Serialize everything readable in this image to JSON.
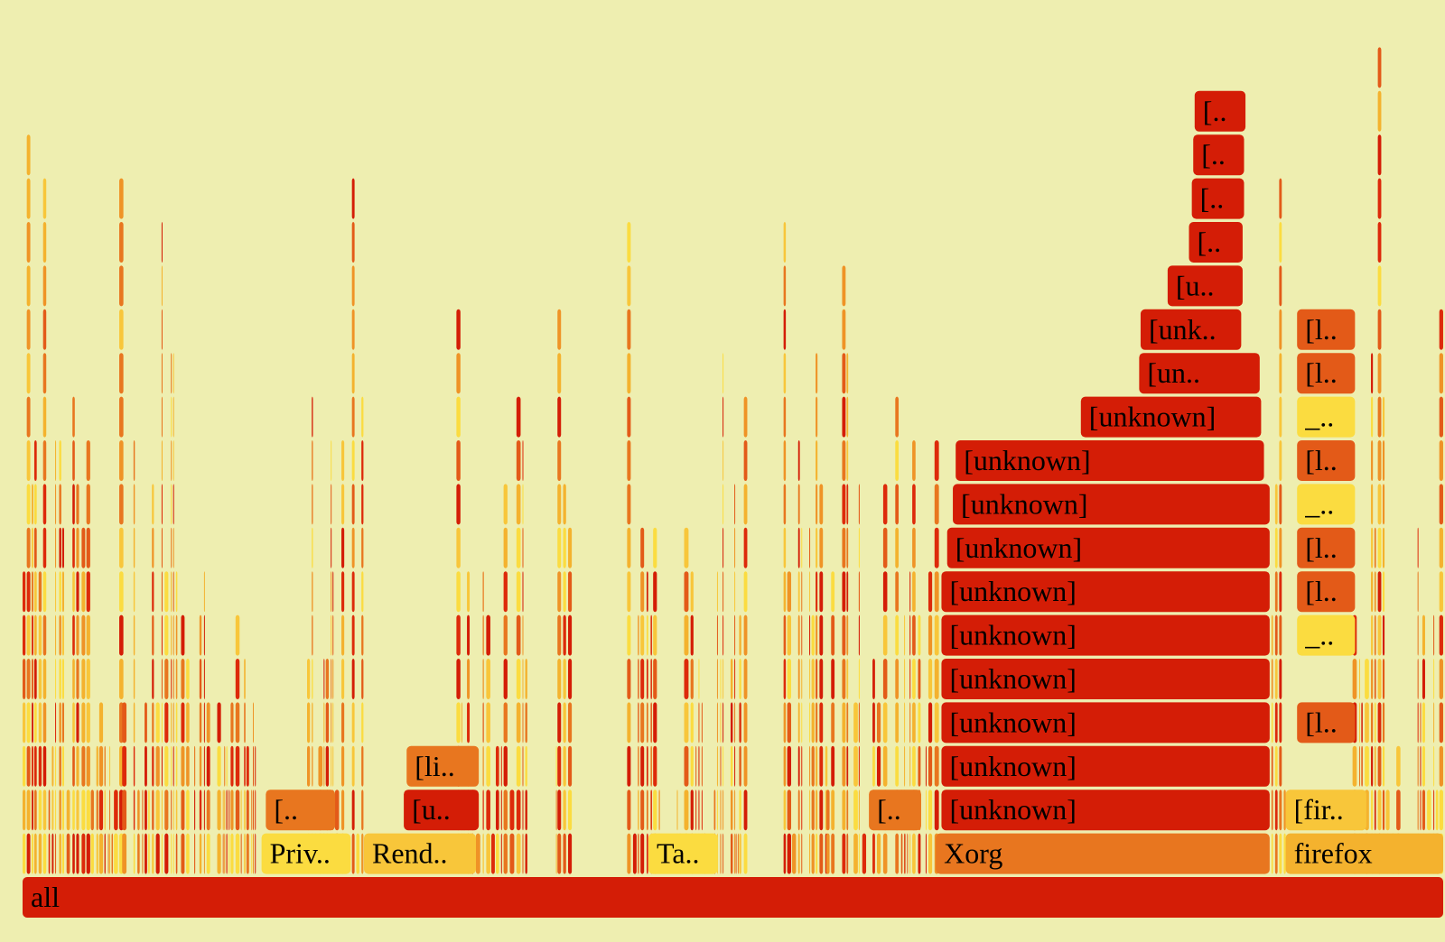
{
  "chart_data": {
    "type": "flamegraph",
    "title": "",
    "total_samples": 1000,
    "palette": [
      "#D41D06",
      "#DD2A0A",
      "#E35A18",
      "#E8761F",
      "#EF9326",
      "#F4B22E",
      "#F8C63A",
      "#FBDC40"
    ],
    "background": "#EEEEB0",
    "frames": [
      {
        "label": "all",
        "start": 0,
        "width": 1000,
        "depth": 0,
        "color": "#D41D06"
      },
      {
        "label": "Priv..",
        "start": 168,
        "width": 64,
        "depth": 1,
        "color": "#FBDC40"
      },
      {
        "label": "Rend..",
        "start": 240,
        "width": 80,
        "depth": 1,
        "color": "#F8C63A"
      },
      {
        "label": "Ta..",
        "start": 440,
        "width": 50,
        "depth": 1,
        "color": "#FBDC40"
      },
      {
        "label": "Xorg",
        "start": 642,
        "width": 236,
        "depth": 1,
        "color": "#E8761F"
      },
      {
        "label": "firefox",
        "start": 888,
        "width": 112,
        "depth": 1,
        "color": "#F4B22E"
      },
      {
        "label": "[..",
        "start": 171,
        "width": 50,
        "depth": 2,
        "color": "#E8761F"
      },
      {
        "label": "[u..",
        "start": 268,
        "width": 54,
        "depth": 2,
        "color": "#D41D06"
      },
      {
        "label": "[..",
        "start": 595,
        "width": 38,
        "depth": 2,
        "color": "#E8761F"
      },
      {
        "label": "[unknown]",
        "start": 646,
        "width": 232,
        "depth": 2,
        "color": "#D41D06"
      },
      {
        "label": "[fir..",
        "start": 888,
        "width": 58,
        "depth": 2,
        "color": "#F8C63A"
      },
      {
        "label": "[li..",
        "start": 270,
        "width": 52,
        "depth": 3,
        "color": "#E8761F"
      },
      {
        "label": "[unknown]",
        "start": 646,
        "width": 232,
        "depth": 3,
        "color": "#D41D06"
      },
      {
        "label": "[unknown]",
        "start": 646,
        "width": 232,
        "depth": 4,
        "color": "#D41D06"
      },
      {
        "label": "[l..",
        "start": 896,
        "width": 42,
        "depth": 4,
        "color": "#E35A18"
      },
      {
        "label": "[unknown]",
        "start": 646,
        "width": 232,
        "depth": 5,
        "color": "#D41D06"
      },
      {
        "label": "[unknown]",
        "start": 646,
        "width": 232,
        "depth": 6,
        "color": "#D41D06"
      },
      {
        "label": "_..",
        "start": 896,
        "width": 42,
        "depth": 6,
        "color": "#FBDC40"
      },
      {
        "label": "[unknown]",
        "start": 646,
        "width": 232,
        "depth": 7,
        "color": "#D41D06"
      },
      {
        "label": "[l..",
        "start": 896,
        "width": 42,
        "depth": 7,
        "color": "#E35A18"
      },
      {
        "label": "[unknown]",
        "start": 650,
        "width": 228,
        "depth": 8,
        "color": "#D41D06"
      },
      {
        "label": "[l..",
        "start": 896,
        "width": 42,
        "depth": 8,
        "color": "#E35A18"
      },
      {
        "label": "[unknown]",
        "start": 654,
        "width": 224,
        "depth": 9,
        "color": "#D41D06"
      },
      {
        "label": "_..",
        "start": 896,
        "width": 42,
        "depth": 9,
        "color": "#FBDC40"
      },
      {
        "label": "[unknown]",
        "start": 656,
        "width": 218,
        "depth": 10,
        "color": "#D41D06"
      },
      {
        "label": "[l..",
        "start": 896,
        "width": 42,
        "depth": 10,
        "color": "#E35A18"
      },
      {
        "label": "[unknown]",
        "start": 744,
        "width": 128,
        "depth": 11,
        "color": "#D41D06"
      },
      {
        "label": "_..",
        "start": 896,
        "width": 42,
        "depth": 11,
        "color": "#FBDC40"
      },
      {
        "label": "[un..",
        "start": 785,
        "width": 86,
        "depth": 12,
        "color": "#D41D06"
      },
      {
        "label": "[l..",
        "start": 896,
        "width": 42,
        "depth": 12,
        "color": "#E35A18"
      },
      {
        "label": "[unk..",
        "start": 786,
        "width": 72,
        "depth": 13,
        "color": "#D41D06"
      },
      {
        "label": "[l..",
        "start": 896,
        "width": 42,
        "depth": 13,
        "color": "#E35A18"
      },
      {
        "label": "[u..",
        "start": 805,
        "width": 54,
        "depth": 14,
        "color": "#D41D06"
      },
      {
        "label": "[..",
        "start": 820,
        "width": 39,
        "depth": 15,
        "color": "#D41D06"
      },
      {
        "label": "[..",
        "start": 822,
        "width": 38,
        "depth": 16,
        "color": "#D41D06"
      },
      {
        "label": "[..",
        "start": 823,
        "width": 37,
        "depth": 17,
        "color": "#D41D06"
      },
      {
        "label": "[..",
        "start": 824,
        "width": 37,
        "depth": 18,
        "color": "#D41D06"
      }
    ]
  }
}
